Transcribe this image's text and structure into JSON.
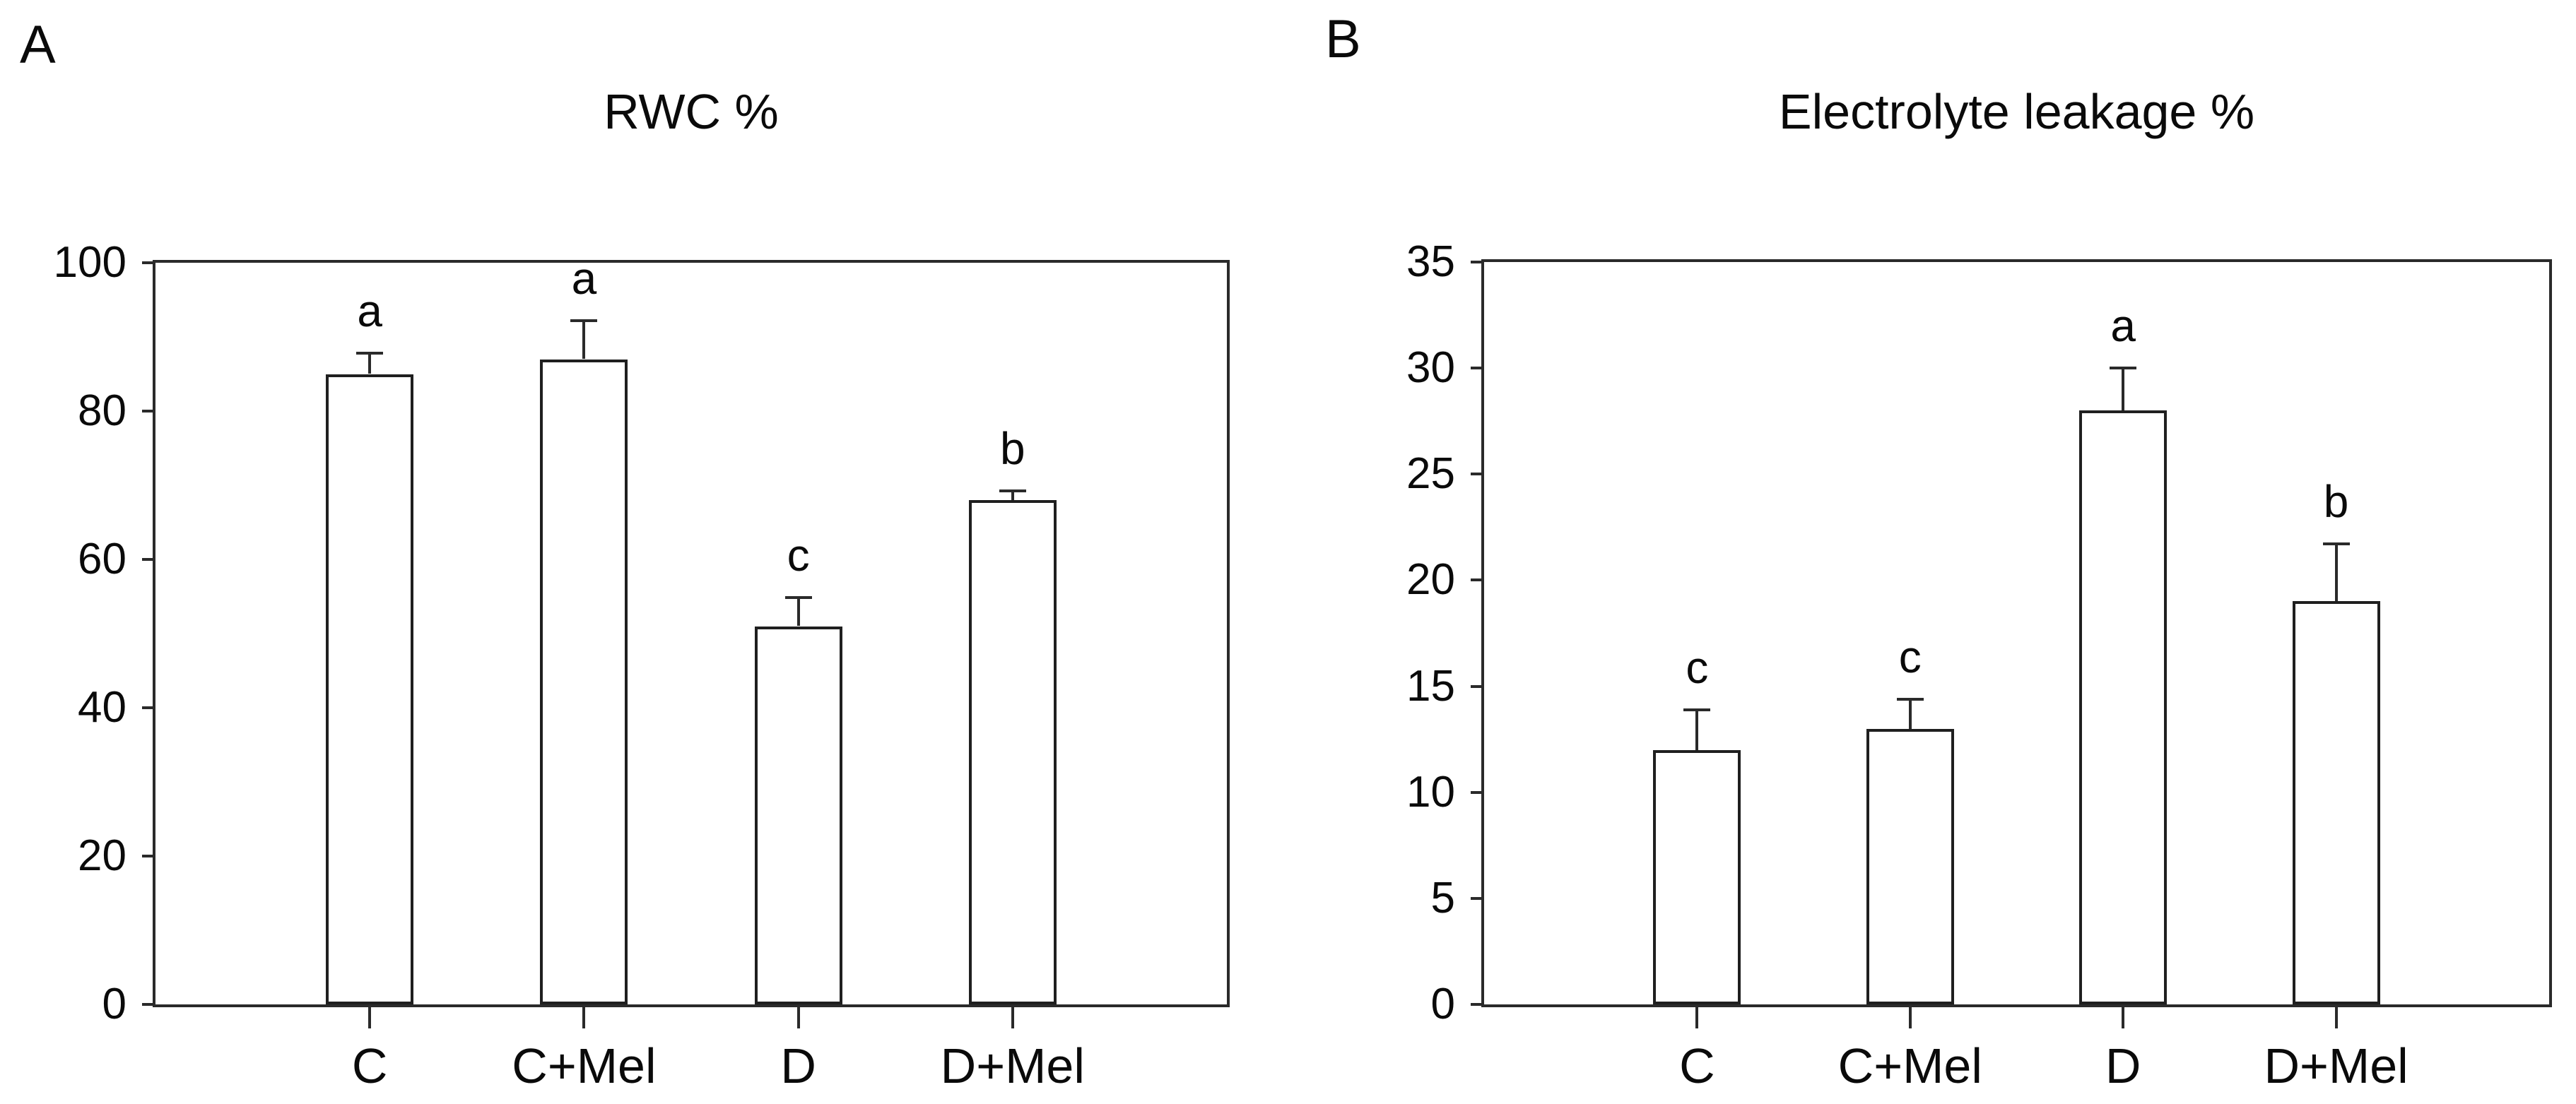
{
  "figure": {
    "background": "#ffffff",
    "axis_color": "#2a2a2a",
    "text_color": "#0a0a0a",
    "bar_fill": "#ffffff",
    "bar_border": "#1f1f1f"
  },
  "chart_data": [
    {
      "type": "bar",
      "panel_label": "A",
      "title": "RWC %",
      "xlabel": "",
      "ylabel": "",
      "categories": [
        "C",
        "C+Mel",
        "D",
        "D+Mel"
      ],
      "values": [
        85,
        87,
        51,
        68
      ],
      "errors_up": [
        2.8,
        5.2,
        3.9,
        1.2
      ],
      "sig_letters": [
        "a",
        "a",
        "c",
        "b"
      ],
      "ylim": [
        0,
        100
      ],
      "yticks": [
        0,
        20,
        40,
        60,
        80,
        100
      ],
      "grid": false,
      "legend": false
    },
    {
      "type": "bar",
      "panel_label": "B",
      "title": "Electrolyte leakage %",
      "xlabel": "",
      "ylabel": "",
      "categories": [
        "C",
        "C+Mel",
        "D",
        "D+Mel"
      ],
      "values": [
        12,
        13,
        28,
        19
      ],
      "errors_up": [
        1.9,
        1.4,
        2.0,
        2.7
      ],
      "sig_letters": [
        "c",
        "c",
        "a",
        "b"
      ],
      "ylim": [
        0,
        35
      ],
      "yticks": [
        0,
        5,
        10,
        15,
        20,
        25,
        30,
        35
      ],
      "grid": false,
      "legend": false
    }
  ]
}
